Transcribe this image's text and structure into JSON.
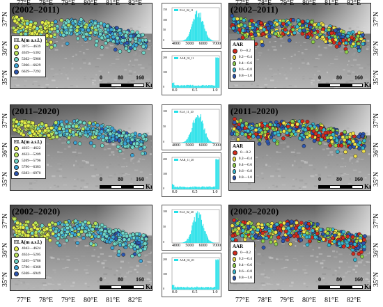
{
  "figure": {
    "longitude_labels": [
      "77°E",
      "78°E",
      "79°E",
      "80°E",
      "81°E",
      "82°E"
    ],
    "latitude_labels": [
      "37°N",
      "36°N",
      "35°N"
    ],
    "scale_numbers": [
      "0",
      "80",
      "160"
    ],
    "scale_unit": "Km",
    "rows": [
      {
        "period": "(2002–2011)",
        "ela_legend": {
          "title": "ELA(m a.s.l.)",
          "items": [
            {
              "label": "3975—4639",
              "color": "#e6f04a"
            },
            {
              "label": "4639—5302",
              "color": "#b8e25a"
            },
            {
              "label": "5302—5966",
              "color": "#6fd6c8"
            },
            {
              "label": "5966—6629",
              "color": "#3aa6d8"
            },
            {
              "label": "6629—7292",
              "color": "#2c55b0"
            }
          ]
        },
        "aar_legend": {
          "title": "AAR",
          "items": [
            {
              "label": "0—0.2",
              "color": "#d42a1c"
            },
            {
              "label": "0.2—0.4",
              "color": "#f0e24a"
            },
            {
              "label": "0.4—0.6",
              "color": "#8fd14a"
            },
            {
              "label": "0.6—0.8",
              "color": "#35b6cf"
            },
            {
              "label": "0.8—1.0",
              "color": "#2c55b0"
            }
          ]
        },
        "ela_hist": {
          "legend": "ELA_02_11",
          "xticks": [
            "4000",
            "5000",
            "6000",
            "7000"
          ],
          "yticks": [
            "0",
            "50",
            "100",
            "150"
          ]
        },
        "aar_hist": {
          "legend": "AAR_02_11",
          "xticks": [
            "0.0",
            "0.5",
            "1.0"
          ],
          "yticks": [
            "0",
            "100",
            "200"
          ]
        }
      },
      {
        "period": "(2011–2020)",
        "ela_legend": {
          "title": "ELA(m a.s.l.)",
          "items": [
            {
              "label": "4035—4622",
              "color": "#e6f04a"
            },
            {
              "label": "4622—5209",
              "color": "#b8e25a"
            },
            {
              "label": "5209—5796",
              "color": "#6fd6c8"
            },
            {
              "label": "5796—6383",
              "color": "#3aa6d8"
            },
            {
              "label": "6383—6970",
              "color": "#2c55b0"
            }
          ]
        },
        "aar_legend": {
          "title": "AAR",
          "items": [
            {
              "label": "0—0.2",
              "color": "#d42a1c"
            },
            {
              "label": "0.2—0.4",
              "color": "#f0e24a"
            },
            {
              "label": "0.4—0.6",
              "color": "#8fd14a"
            },
            {
              "label": "0.6—0.8",
              "color": "#35b6cf"
            },
            {
              "label": "0.8—1.0",
              "color": "#2c55b0"
            }
          ]
        },
        "ela_hist": {
          "legend": "ELA_11_20",
          "xticks": [
            "4000",
            "5000",
            "6000",
            "7000"
          ],
          "yticks": [
            "0",
            "50",
            "100"
          ]
        },
        "aar_hist": {
          "legend": "AAR_11_20",
          "xticks": [
            "0.0",
            "0.5",
            "1.0"
          ],
          "yticks": [
            "0",
            "100",
            "200"
          ]
        }
      },
      {
        "period": "(2002–2020)",
        "ela_legend": {
          "title": "ELA(m a.s.l.)",
          "items": [
            {
              "label": "4042—4624",
              "color": "#e6f04a"
            },
            {
              "label": "4624—5205",
              "color": "#b8e25a"
            },
            {
              "label": "5205—5786",
              "color": "#6fd6c8"
            },
            {
              "label": "5786—6368",
              "color": "#3aa6d8"
            },
            {
              "label": "6368—6949",
              "color": "#2c55b0"
            }
          ]
        },
        "aar_legend": {
          "title": "AAR",
          "items": [
            {
              "label": "0—0.2",
              "color": "#d42a1c"
            },
            {
              "label": "0.2—0.4",
              "color": "#f0e24a"
            },
            {
              "label": "0.4—0.6",
              "color": "#8fd14a"
            },
            {
              "label": "0.6—0.8",
              "color": "#35b6cf"
            },
            {
              "label": "0.8—1.0",
              "color": "#2c55b0"
            }
          ]
        },
        "ela_hist": {
          "legend": "ELA_02_20",
          "xticks": [
            "4000",
            "5000",
            "6000",
            "7000"
          ],
          "yticks": [
            "0",
            "50",
            "100"
          ]
        },
        "aar_hist": {
          "legend": "AAR_02_20",
          "xticks": [
            "0.0",
            "0.5",
            "1.0"
          ],
          "yticks": [
            "0",
            "100",
            "200"
          ]
        }
      }
    ],
    "colors": {
      "histogram_fill": "#22e0e8",
      "terrain_dark": "#2a2a2a",
      "terrain_light": "#bdbdbd"
    }
  }
}
